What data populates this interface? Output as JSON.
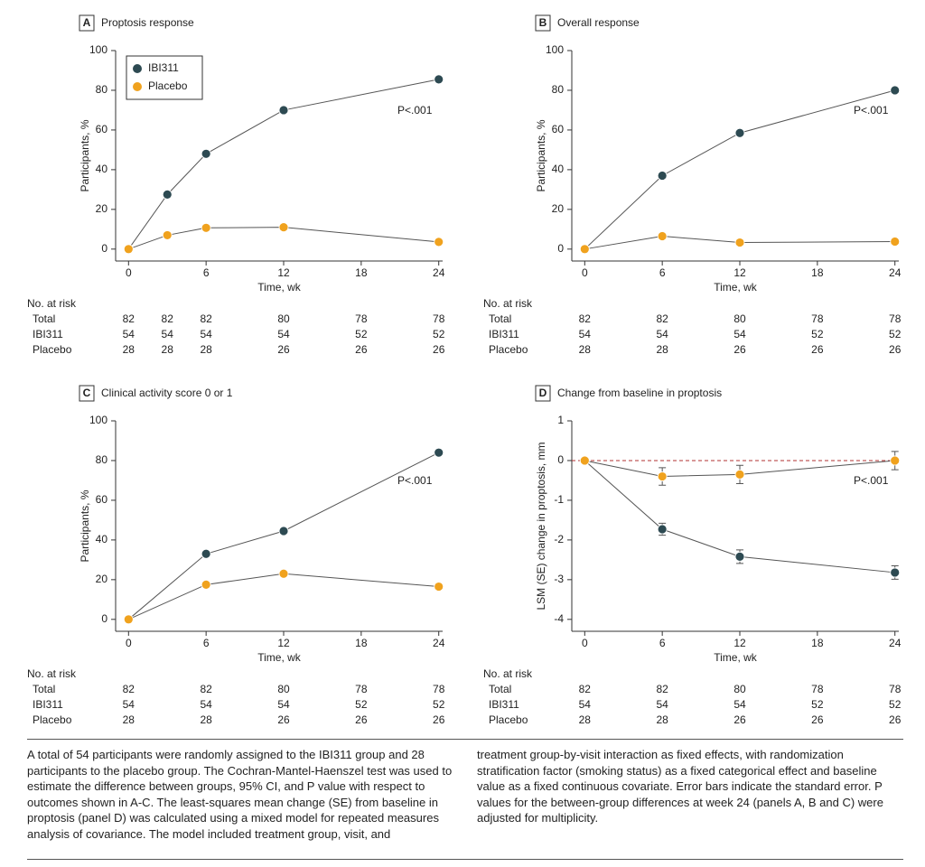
{
  "chart_data": [
    {
      "type": "line",
      "panel": "A",
      "title": "Proptosis response",
      "xlabel": "Time, wk",
      "ylabel": "Participants, %",
      "x": [
        0,
        3,
        6,
        12,
        24
      ],
      "xlim": [
        -1,
        24.3
      ],
      "xticks": [
        0,
        6,
        12,
        18,
        24
      ],
      "ylim": [
        -6,
        100
      ],
      "yticks": [
        0,
        20,
        40,
        60,
        80,
        100
      ],
      "legend": "upper left",
      "annotation": "P<.001",
      "series": [
        {
          "name": "IBI311",
          "color": "#2d4a52",
          "values": [
            0,
            27.5,
            48,
            70,
            85.5
          ]
        },
        {
          "name": "Placebo",
          "color": "#f0a21e",
          "values": [
            0,
            7,
            10.7,
            11,
            3.6
          ]
        }
      ],
      "risk_table": {
        "title": "No. at risk",
        "x": [
          0,
          3,
          6,
          12,
          18,
          24
        ],
        "rows": [
          {
            "name": "Total",
            "values": [
              82,
              82,
              82,
              80,
              78,
              78
            ]
          },
          {
            "name": "IBI311",
            "values": [
              54,
              54,
              54,
              54,
              52,
              52
            ]
          },
          {
            "name": "Placebo",
            "values": [
              28,
              28,
              28,
              26,
              26,
              26
            ]
          }
        ]
      }
    },
    {
      "type": "line",
      "panel": "B",
      "title": "Overall response",
      "xlabel": "Time, wk",
      "ylabel": "Participants, %",
      "x": [
        0,
        6,
        12,
        24
      ],
      "xlim": [
        -1,
        24.3
      ],
      "xticks": [
        0,
        6,
        12,
        18,
        24
      ],
      "ylim": [
        -6,
        100
      ],
      "yticks": [
        0,
        20,
        40,
        60,
        80,
        100
      ],
      "annotation": "P<.001",
      "series": [
        {
          "color": "#2d4a52",
          "values": [
            0,
            37,
            58.5,
            80
          ]
        },
        {
          "color": "#f0a21e",
          "values": [
            0,
            6.5,
            3.3,
            3.8
          ]
        }
      ],
      "risk_table": {
        "title": "No. at risk",
        "x": [
          0,
          6,
          12,
          18,
          24
        ],
        "rows": [
          {
            "name": "Total",
            "values": [
              82,
              82,
              80,
              78,
              78
            ]
          },
          {
            "name": "IBI311",
            "values": [
              54,
              54,
              54,
              52,
              52
            ]
          },
          {
            "name": "Placebo",
            "values": [
              28,
              28,
              26,
              26,
              26
            ]
          }
        ]
      }
    },
    {
      "type": "line",
      "panel": "C",
      "title": "Clinical activity score 0 or 1",
      "xlabel": "Time, wk",
      "ylabel": "Participants, %",
      "x": [
        0,
        6,
        12,
        24
      ],
      "xlim": [
        -1,
        24.3
      ],
      "xticks": [
        0,
        6,
        12,
        18,
        24
      ],
      "ylim": [
        -6,
        100
      ],
      "yticks": [
        0,
        20,
        40,
        60,
        80,
        100
      ],
      "annotation": "P<.001",
      "series": [
        {
          "color": "#2d4a52",
          "values": [
            0,
            33,
            44.5,
            84
          ]
        },
        {
          "color": "#f0a21e",
          "values": [
            0,
            17.5,
            23,
            16.5
          ]
        }
      ],
      "risk_table": {
        "title": "No. at risk",
        "x": [
          0,
          6,
          12,
          18,
          24
        ],
        "rows": [
          {
            "name": "Total",
            "values": [
              82,
              82,
              80,
              78,
              78
            ]
          },
          {
            "name": "IBI311",
            "values": [
              54,
              54,
              54,
              52,
              52
            ]
          },
          {
            "name": "Placebo",
            "values": [
              28,
              28,
              26,
              26,
              26
            ]
          }
        ]
      }
    },
    {
      "type": "line",
      "panel": "D",
      "title": "Change from baseline in proptosis",
      "xlabel": "Time, wk",
      "ylabel": "LSM (SE) change in proptosis, mm",
      "x": [
        0,
        6,
        12,
        24
      ],
      "xlim": [
        -1,
        24.3
      ],
      "xticks": [
        0,
        6,
        12,
        18,
        24
      ],
      "ylim": [
        -4.3,
        1
      ],
      "yticks": [
        -4,
        -3,
        -2,
        -1,
        0,
        1
      ],
      "reference_line": 0,
      "annotation": "P<.001",
      "series": [
        {
          "color": "#2d4a52",
          "values": [
            0,
            -1.73,
            -2.42,
            -2.82
          ],
          "errors": [
            0,
            0.15,
            0.17,
            0.17
          ]
        },
        {
          "color": "#f0a21e",
          "values": [
            0,
            -0.4,
            -0.35,
            0
          ],
          "errors": [
            0,
            0.22,
            0.23,
            0.23
          ]
        }
      ],
      "risk_table": {
        "title": "No. at risk",
        "x": [
          0,
          6,
          12,
          18,
          24
        ],
        "rows": [
          {
            "name": "Total",
            "values": [
              82,
              82,
              80,
              78,
              78
            ]
          },
          {
            "name": "IBI311",
            "values": [
              54,
              54,
              54,
              52,
              52
            ]
          },
          {
            "name": "Placebo",
            "values": [
              28,
              28,
              26,
              26,
              26
            ]
          }
        ]
      }
    }
  ],
  "caption": [
    "A total of 54 participants were randomly assigned to the IBI311 group and 28 participants to the placebo group. The Cochran-Mantel-Haenszel test was used to estimate the difference between groups, 95% CI, and P value with respect to outcomes shown in A-C. The least-squares mean change (SE) from baseline in proptosis (panel D) was calculated using a mixed model for repeated measures analysis of covariance. The model included treatment group, visit, and",
    "treatment group-by-visit interaction as fixed effects, with randomization stratification factor (smoking status) as a fixed categorical effect and baseline value as a fixed continuous covariate. Error bars indicate the standard error. P values for the between-group differences at week 24 (panels A, B and C) were adjusted for multiplicity."
  ]
}
